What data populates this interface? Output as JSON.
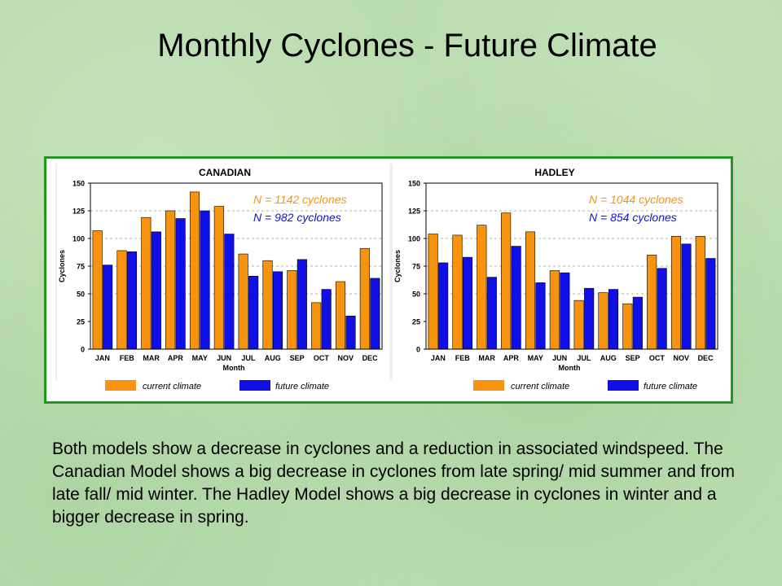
{
  "slide": {
    "title": "Monthly Cyclones - Future Climate",
    "caption": "Both models show a decrease in cyclones and a reduction in associated windspeed. The Canadian Model shows a big decrease in cyclones from late spring/ mid summer and from late fall/ mid winter. The Hadley Model shows a big decrease in cyclones in winter and a bigger decrease in spring."
  },
  "colors": {
    "current": "#f7930e",
    "future": "#1010e6",
    "frame": "#1f9a1f"
  },
  "chart_data": [
    {
      "type": "bar",
      "title": "CANADIAN",
      "xlabel": "Month",
      "ylabel": "Cyclones",
      "ylim": [
        0,
        150
      ],
      "yticks": [
        0,
        25,
        50,
        75,
        100,
        125,
        150
      ],
      "grid": "horizontal dashed at 125, 100, 75, 50",
      "categories": [
        "JAN",
        "FEB",
        "MAR",
        "APR",
        "MAY",
        "JUN",
        "JUL",
        "AUG",
        "SEP",
        "OCT",
        "NOV",
        "DEC"
      ],
      "series": [
        {
          "name": "current climate",
          "values": [
            107,
            89,
            119,
            125,
            142,
            129,
            86,
            80,
            71,
            42,
            61,
            91
          ]
        },
        {
          "name": "future climate",
          "values": [
            76,
            88,
            106,
            118,
            125,
            104,
            66,
            70,
            81,
            54,
            30,
            64
          ]
        }
      ],
      "annotations": [
        "N = 1142 cyclones",
        "N =   982 cyclones"
      ],
      "legend_position": "bottom"
    },
    {
      "type": "bar",
      "title": "HADLEY",
      "xlabel": "Month",
      "ylabel": "Cyclones",
      "ylim": [
        0,
        150
      ],
      "yticks": [
        0,
        25,
        50,
        75,
        100,
        125,
        150
      ],
      "grid": "horizontal dashed at 125, 100, 75, 50",
      "categories": [
        "JAN",
        "FEB",
        "MAR",
        "APR",
        "MAY",
        "JUN",
        "JUL",
        "AUG",
        "SEP",
        "OCT",
        "NOV",
        "DEC"
      ],
      "series": [
        {
          "name": "current climate",
          "values": [
            104,
            103,
            112,
            123,
            106,
            71,
            44,
            51,
            41,
            85,
            102,
            102
          ]
        },
        {
          "name": "future climate",
          "values": [
            78,
            83,
            65,
            93,
            60,
            69,
            55,
            54,
            47,
            73,
            95,
            82
          ]
        }
      ],
      "annotations": [
        "N = 1044 cyclones",
        "N =   854 cyclones"
      ],
      "legend_position": "bottom"
    }
  ]
}
